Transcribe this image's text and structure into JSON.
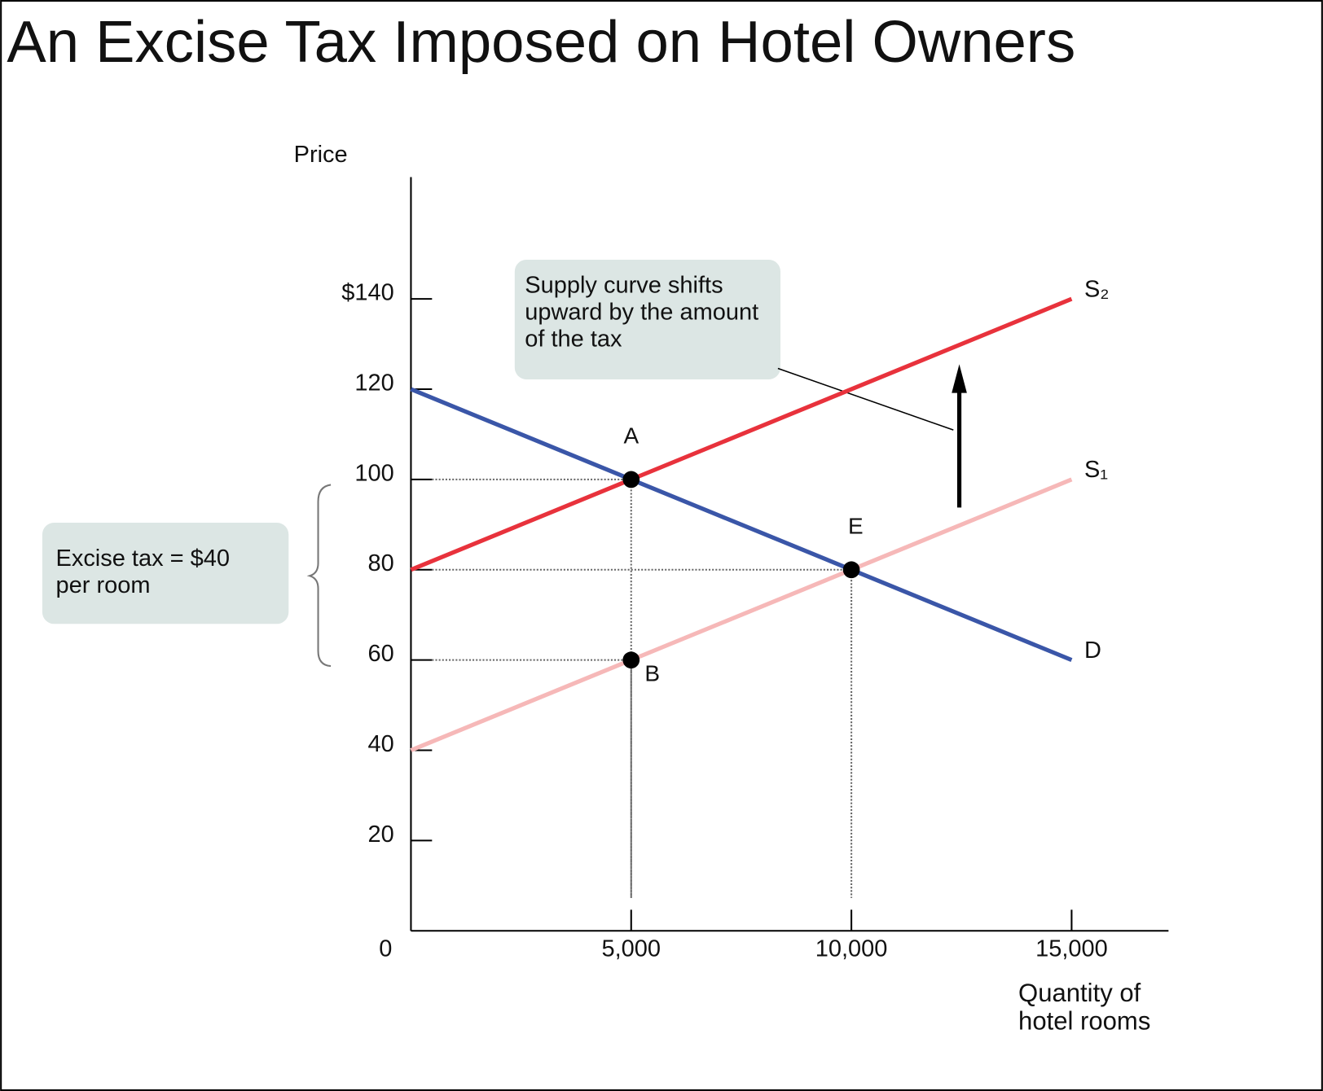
{
  "chart_data": {
    "type": "line",
    "title": "An Excise Tax Imposed on Hotel Owners",
    "y_label": "Price",
    "x_label": "Quantity of hotel rooms",
    "x": [
      0,
      15000
    ],
    "xlim": [
      0,
      17200
    ],
    "ylim": [
      0,
      167
    ],
    "xticks": [
      0,
      {
        "value": 5000,
        "label": "5,000"
      },
      {
        "value": 10000,
        "label": "10,000"
      },
      {
        "value": 15000,
        "label": "15,000"
      }
    ],
    "yticks": [
      {
        "value": 140,
        "label": "$140"
      },
      120,
      100,
      80,
      60,
      40,
      20
    ],
    "series": [
      {
        "name": "S₂",
        "color": "#e8323c",
        "values": [
          80,
          140
        ]
      },
      {
        "name": "S₁",
        "color": "#f6b8b8",
        "values": [
          40,
          100
        ]
      },
      {
        "name": "D",
        "color": "#3a56a8",
        "values": [
          120,
          60
        ]
      }
    ],
    "points": [
      {
        "label": "A",
        "x": 5000,
        "y": 100
      },
      {
        "label": "B",
        "x": 5000,
        "y": 60
      },
      {
        "label": "E",
        "x": 10000,
        "y": 80
      }
    ],
    "annotations": [
      "Supply curve shifts upward by the amount of the tax",
      "Excise tax = $40 per room"
    ]
  }
}
